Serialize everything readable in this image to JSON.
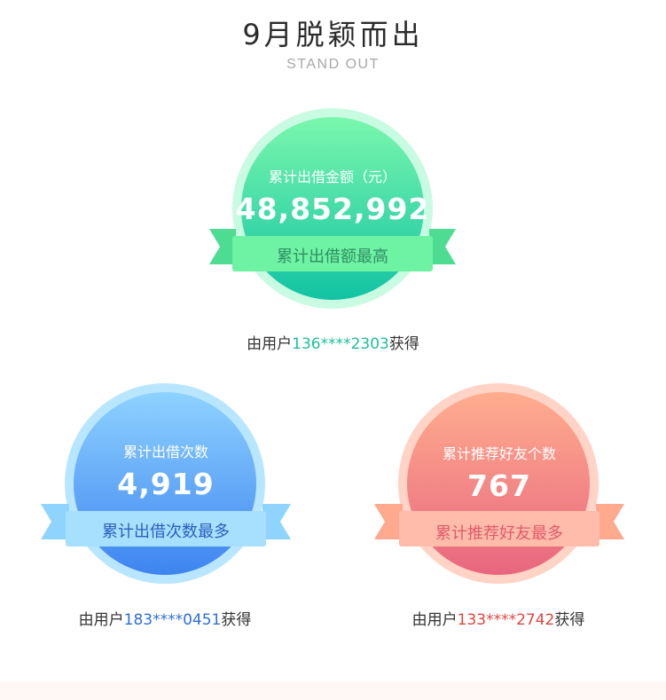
{
  "header": {
    "title": "9月脱颖而出",
    "subtitle": "STAND OUT"
  },
  "colors": {
    "green_accent": "#1fbf99",
    "blue_accent": "#2f6fd8",
    "red_accent": "#e0463e"
  },
  "awards": [
    {
      "label": "累计出借金额（元）",
      "value": "48,852,992",
      "ribbon": "累计出借额最高",
      "caption_prefix": "由用户",
      "user": "136****2303",
      "caption_suffix": "获得"
    },
    {
      "label": "累计出借次数",
      "value": "4,919",
      "ribbon": "累计出借次数最多",
      "caption_prefix": "由用户",
      "user": "183****0451",
      "caption_suffix": "获得"
    },
    {
      "label": "累计推荐好友个数",
      "value": "767",
      "ribbon": "累计推荐好友最多",
      "caption_prefix": "由用户",
      "user": "133****2742",
      "caption_suffix": "获得"
    }
  ]
}
